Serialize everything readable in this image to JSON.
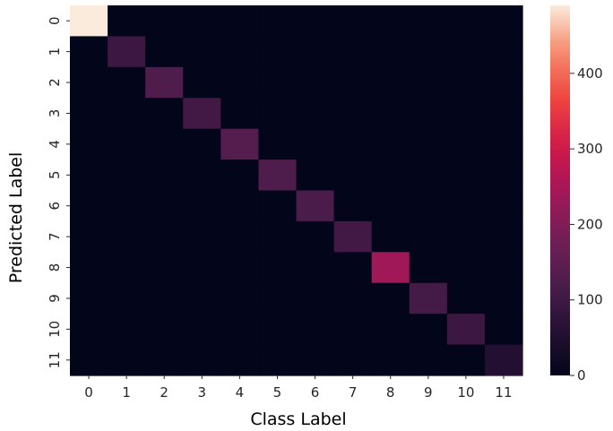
{
  "chart_data": {
    "type": "heatmap",
    "title": "",
    "xlabel": "Class Label",
    "ylabel": "Predicted Label",
    "x_categories": [
      "0",
      "1",
      "2",
      "3",
      "4",
      "5",
      "6",
      "7",
      "8",
      "9",
      "10",
      "11"
    ],
    "y_categories": [
      "0",
      "1",
      "2",
      "3",
      "4",
      "5",
      "6",
      "7",
      "8",
      "9",
      "10",
      "11"
    ],
    "matrix": [
      [
        490,
        0,
        0,
        0,
        0,
        0,
        0,
        0,
        0,
        0,
        0,
        0
      ],
      [
        0,
        95,
        0,
        0,
        0,
        0,
        0,
        0,
        0,
        0,
        0,
        0
      ],
      [
        0,
        0,
        125,
        0,
        0,
        0,
        0,
        0,
        0,
        0,
        0,
        0
      ],
      [
        0,
        0,
        0,
        105,
        0,
        0,
        0,
        0,
        0,
        0,
        0,
        0
      ],
      [
        0,
        0,
        0,
        0,
        135,
        0,
        0,
        0,
        0,
        0,
        0,
        0
      ],
      [
        0,
        0,
        0,
        0,
        0,
        125,
        0,
        0,
        0,
        0,
        0,
        0
      ],
      [
        0,
        0,
        0,
        0,
        0,
        0,
        120,
        0,
        0,
        0,
        0,
        0
      ],
      [
        0,
        0,
        0,
        0,
        0,
        0,
        0,
        105,
        0,
        0,
        0,
        0
      ],
      [
        0,
        0,
        0,
        0,
        0,
        0,
        0,
        0,
        240,
        0,
        0,
        0
      ],
      [
        0,
        0,
        0,
        0,
        0,
        0,
        0,
        0,
        0,
        110,
        0,
        0
      ],
      [
        0,
        0,
        0,
        0,
        0,
        0,
        0,
        0,
        0,
        0,
        95,
        0
      ],
      [
        0,
        0,
        0,
        0,
        0,
        0,
        0,
        0,
        0,
        0,
        0,
        55
      ]
    ],
    "colorbar": {
      "min": 0,
      "max": 490,
      "ticks": [
        0,
        100,
        200,
        300,
        400
      ]
    },
    "colormap": "rocket",
    "grid": false
  }
}
